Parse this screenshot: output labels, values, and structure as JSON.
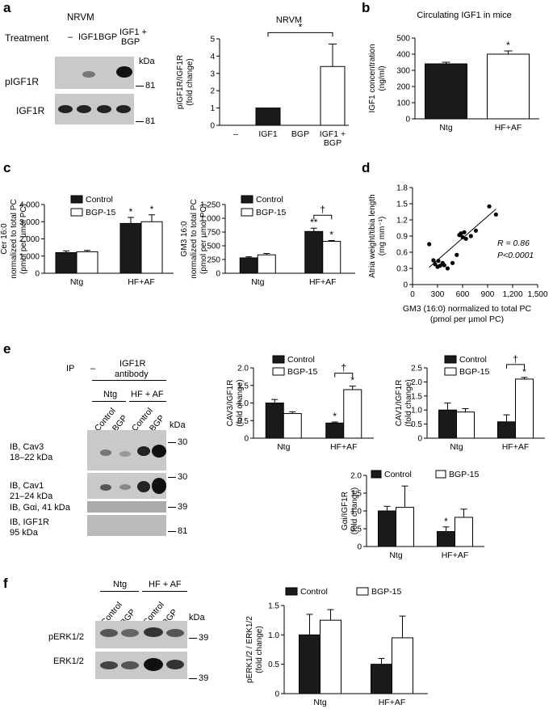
{
  "panels": {
    "a": "a",
    "b": "b",
    "c": "c",
    "d": "d",
    "e": "e",
    "f": "f"
  },
  "blot_a": {
    "title": "NRVM",
    "treatment_label": "Treatment",
    "lanes": [
      "–",
      "IGF1",
      "BGP",
      "IGF1 +",
      "BGP"
    ],
    "kda": "kDa",
    "rows": [
      "pIGF1R",
      "IGF1R"
    ],
    "markers": [
      "81",
      "81"
    ]
  },
  "blot_e": {
    "ip": "IP",
    "dash": "–",
    "antibody_1": "IGF1R",
    "antibody_2": "antibody",
    "groups": [
      "Ntg",
      "HF + AF"
    ],
    "lanes": [
      "Control",
      "BGP",
      "Control",
      "BGP"
    ],
    "kda": "kDa",
    "rows": [
      {
        "l1": "IB, Cav3",
        "l2": "18–22 kDa"
      },
      {
        "l1": "IB, Cav1",
        "l2": "21–24 kDa"
      },
      {
        "l1": "IB, Gαi, 41 kDa",
        "l2": ""
      },
      {
        "l1": "IB, IGF1R",
        "l2": "95 kDa"
      }
    ],
    "markers": [
      "30",
      "30",
      "39",
      "81"
    ]
  },
  "blot_f": {
    "groups": [
      "Ntg",
      "HF + AF"
    ],
    "lanes": [
      "Control",
      "BGP",
      "Control",
      "BGP"
    ],
    "kda": "kDa",
    "rows": [
      "pERK1/2",
      "ERK1/2"
    ],
    "markers": [
      "39",
      "39"
    ]
  },
  "colors": {
    "filled": "#1a1a1a",
    "open": "#ffffff"
  },
  "chart_data": [
    {
      "id": "a_bar",
      "type": "bar",
      "title": "NRVM",
      "ylabel": "pIGF1R/IGF1R\n(fold change)",
      "categories": [
        "–",
        "IGF1",
        "BGP",
        "IGF1 +\nBGP"
      ],
      "values": [
        0,
        1.0,
        0,
        3.4
      ],
      "errors": [
        0,
        0,
        0,
        1.3
      ],
      "fills": [
        "filled",
        "filled",
        "filled",
        "open"
      ],
      "ylim": [
        0,
        5
      ],
      "yticks": [
        0,
        1,
        2,
        3,
        4,
        5
      ],
      "annotations": [
        {
          "text": "*",
          "type": "bracket",
          "from": 1,
          "to": 3
        }
      ]
    },
    {
      "id": "b",
      "type": "bar",
      "title": "Circulating IGF1 in mice",
      "ylabel": "IGF1 concentration\n(ng/ml)",
      "categories": [
        "Ntg",
        "HF+AF"
      ],
      "values": [
        340,
        400
      ],
      "errors": [
        10,
        20
      ],
      "fills": [
        "filled",
        "open"
      ],
      "ylim": [
        0,
        500
      ],
      "yticks": [
        0,
        100,
        200,
        300,
        400,
        500
      ],
      "annotations": [
        {
          "text": "*",
          "type": "above",
          "bar": 1
        }
      ]
    },
    {
      "id": "c1",
      "type": "bar",
      "ylabel": "Cer 16:0\nnormalized to total PC\n(pmol per µmol PC)",
      "categories": [
        "Ntg",
        "HF+AF"
      ],
      "series": [
        {
          "name": "Control",
          "values": [
            1200,
            2900
          ],
          "errors": [
            100,
            350
          ]
        },
        {
          "name": "BGP-15",
          "values": [
            1250,
            3000
          ],
          "errors": [
            80,
            400
          ]
        }
      ],
      "ylim": [
        0,
        4000
      ],
      "yticks": [
        0,
        1000,
        2000,
        3000,
        4000
      ],
      "tick_labels": [
        "0",
        "1,000",
        "2,000",
        "3,000",
        "4,000"
      ],
      "annotations": [
        {
          "text": "*",
          "type": "above",
          "group": 1,
          "series": 0
        },
        {
          "text": "*",
          "type": "above",
          "group": 1,
          "series": 1
        }
      ]
    },
    {
      "id": "c2",
      "type": "bar",
      "ylabel": "GM3 16:0\nnormalized to total PC\n(pmol per µmol PC)",
      "categories": [
        "Ntg",
        "HF+AF"
      ],
      "series": [
        {
          "name": "Control",
          "values": [
            280,
            760
          ],
          "errors": [
            20,
            60
          ]
        },
        {
          "name": "BGP-15",
          "values": [
            335,
            580
          ],
          "errors": [
            25,
            15
          ]
        }
      ],
      "ylim": [
        0,
        1250
      ],
      "yticks": [
        0,
        250,
        500,
        750,
        1000,
        1250
      ],
      "tick_labels": [
        "0",
        "250",
        "500",
        "750",
        "1,000",
        "1,250"
      ],
      "annotations": [
        {
          "text": "**",
          "type": "above",
          "group": 1,
          "series": 0
        },
        {
          "text": "*",
          "type": "above",
          "group": 1,
          "series": 1
        },
        {
          "text": "†",
          "type": "bracket",
          "group": 1
        }
      ]
    },
    {
      "id": "d",
      "type": "scatter",
      "xlabel": "GM3 (16:0) normalized to total PC\n(pmol per µmol PC)",
      "ylabel": "Atria weight/tibia length\n(mg mm⁻¹)",
      "xlim": [
        0,
        1500
      ],
      "ylim": [
        0,
        1.8
      ],
      "xticks": [
        0,
        300,
        600,
        900,
        1200,
        1500
      ],
      "xtick_labels": [
        "0",
        "300",
        "600",
        "900",
        "1,200",
        "1,500"
      ],
      "yticks": [
        0,
        0.3,
        0.6,
        0.9,
        1.2,
        1.5,
        1.8
      ],
      "ytick_labels": [
        "0",
        "0.3",
        "0.6",
        "0.9",
        "1.2",
        "1.5",
        "1.8"
      ],
      "x": [
        200,
        250,
        270,
        300,
        310,
        330,
        360,
        380,
        420,
        480,
        530,
        560,
        580,
        600,
        620,
        640,
        700,
        760,
        920,
        1000
      ],
      "y": [
        0.75,
        0.45,
        0.38,
        0.33,
        0.44,
        0.35,
        0.4,
        0.36,
        0.3,
        0.4,
        0.55,
        0.92,
        0.95,
        0.88,
        0.97,
        0.85,
        0.9,
        1.0,
        1.45,
        1.3
      ],
      "fit": {
        "x": [
          200,
          1000
        ],
        "y": [
          0.32,
          1.4
        ]
      },
      "stats": {
        "r": "R = 0.86",
        "p": "P<0.0001"
      }
    },
    {
      "id": "e1",
      "type": "bar",
      "ylabel": "CAV3/IGF1R\n(fold change)",
      "categories": [
        "Ntg",
        "HF+AF"
      ],
      "series": [
        {
          "name": "Control",
          "values": [
            1.0,
            0.43
          ],
          "errors": [
            0.1,
            0.03
          ]
        },
        {
          "name": "BGP-15",
          "values": [
            0.7,
            1.38
          ],
          "errors": [
            0.05,
            0.1
          ]
        }
      ],
      "ylim": [
        0,
        2.0
      ],
      "yticks": [
        0,
        0.5,
        1.0,
        1.5,
        2.0
      ],
      "tick_labels": [
        "0",
        "0.5",
        "1.0",
        "1.5",
        "2.0"
      ],
      "annotations": [
        {
          "text": "*",
          "type": "above",
          "group": 1,
          "series": 0
        },
        {
          "text": "*",
          "type": "above",
          "group": 1,
          "series": 1
        },
        {
          "text": "†",
          "type": "bracket",
          "group": 1
        }
      ]
    },
    {
      "id": "e2",
      "type": "bar",
      "ylabel": "CAV1/IGF1R\n(fold change)",
      "categories": [
        "Ntg",
        "HF+AF"
      ],
      "series": [
        {
          "name": "Control",
          "values": [
            1.0,
            0.58
          ],
          "errors": [
            0.25,
            0.25
          ]
        },
        {
          "name": "BGP-15",
          "values": [
            0.93,
            2.1
          ],
          "errors": [
            0.12,
            0.06
          ]
        }
      ],
      "ylim": [
        0,
        2.5
      ],
      "yticks": [
        0,
        0.5,
        1.0,
        1.5,
        2.0,
        2.5
      ],
      "tick_labels": [
        "0",
        "0.5",
        "1.0",
        "1.5",
        "2.0",
        "2.5"
      ],
      "annotations": [
        {
          "text": "*",
          "type": "above",
          "group": 1,
          "series": 1
        },
        {
          "text": "†",
          "type": "bracket",
          "group": 1
        }
      ]
    },
    {
      "id": "e3",
      "type": "bar",
      "ylabel": "Gαi/IGF1R\n(fold change)",
      "categories": [
        "Ntg",
        "HF+AF"
      ],
      "series": [
        {
          "name": "Control",
          "values": [
            1.0,
            0.42
          ],
          "errors": [
            0.13,
            0.13
          ]
        },
        {
          "name": "BGP-15",
          "values": [
            1.1,
            0.82
          ],
          "errors": [
            0.6,
            0.23
          ]
        }
      ],
      "ylim": [
        0,
        2.0
      ],
      "yticks": [
        0,
        0.5,
        1.0,
        1.5,
        2.0
      ],
      "tick_labels": [
        "0",
        "0.5",
        "1.0",
        "1.5",
        "2.0"
      ],
      "annotations": [
        {
          "text": "*",
          "type": "above",
          "group": 1,
          "series": 0
        }
      ]
    },
    {
      "id": "f",
      "type": "bar",
      "ylabel": "pERK1/2 / ERK1/2\n(fold change)",
      "categories": [
        "Ntg",
        "HF+AF"
      ],
      "series": [
        {
          "name": "Control",
          "values": [
            1.0,
            0.5
          ],
          "errors": [
            0.35,
            0.1
          ]
        },
        {
          "name": "BGP-15",
          "values": [
            1.25,
            0.95
          ],
          "errors": [
            0.18,
            0.37
          ]
        }
      ],
      "ylim": [
        0,
        1.5
      ],
      "yticks": [
        0,
        0.5,
        1.0,
        1.5
      ],
      "tick_labels": [
        "0",
        "0.5",
        "1.0",
        "1.5"
      ],
      "annotations": []
    }
  ]
}
